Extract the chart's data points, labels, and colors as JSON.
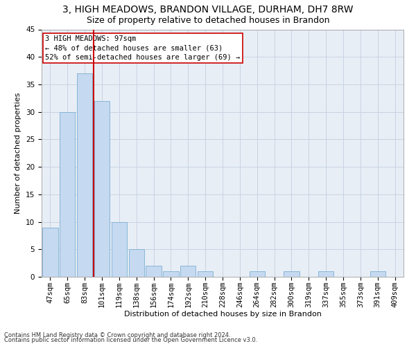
{
  "title": "3, HIGH MEADOWS, BRANDON VILLAGE, DURHAM, DH7 8RW",
  "subtitle": "Size of property relative to detached houses in Brandon",
  "xlabel": "Distribution of detached houses by size in Brandon",
  "ylabel": "Number of detached properties",
  "categories": [
    "47sqm",
    "65sqm",
    "83sqm",
    "101sqm",
    "119sqm",
    "138sqm",
    "156sqm",
    "174sqm",
    "192sqm",
    "210sqm",
    "228sqm",
    "246sqm",
    "264sqm",
    "282sqm",
    "300sqm",
    "319sqm",
    "337sqm",
    "355sqm",
    "373sqm",
    "391sqm",
    "409sqm"
  ],
  "values": [
    9,
    30,
    37,
    32,
    10,
    5,
    2,
    1,
    2,
    1,
    0,
    0,
    1,
    0,
    1,
    0,
    1,
    0,
    0,
    1,
    0
  ],
  "bar_color": "#c5d9f0",
  "bar_edgecolor": "#7bafd4",
  "vline_x": 2.5,
  "vline_color": "#cc0000",
  "annotation_text": "3 HIGH MEADOWS: 97sqm\n← 48% of detached houses are smaller (63)\n52% of semi-detached houses are larger (69) →",
  "annotation_box_color": "#cc0000",
  "ylim": [
    0,
    45
  ],
  "yticks": [
    0,
    5,
    10,
    15,
    20,
    25,
    30,
    35,
    40,
    45
  ],
  "footnote1": "Contains HM Land Registry data © Crown copyright and database right 2024.",
  "footnote2": "Contains public sector information licensed under the Open Government Licence v3.0.",
  "bg_color": "#ffffff",
  "plot_bg_color": "#e8eef5",
  "grid_color": "#c8d4e4",
  "title_fontsize": 10,
  "subtitle_fontsize": 9,
  "axis_label_fontsize": 8,
  "tick_fontsize": 7.5,
  "annotation_fontsize": 7.5,
  "footnote_fontsize": 6
}
